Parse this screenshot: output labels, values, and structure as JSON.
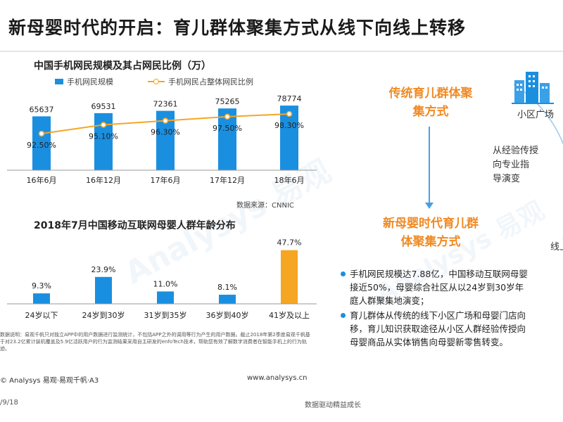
{
  "header": {
    "title": "新母婴时代的开启：育儿群体聚集方式从线下向线上转移"
  },
  "chart_data": [
    {
      "type": "bar",
      "title": "中国手机网民规模及其占网民比例（万）",
      "categories": [
        "16年6月",
        "16年12月",
        "17年6月",
        "17年12月",
        "18年6月"
      ],
      "series": [
        {
          "name": "手机网民规模",
          "values": [
            65637,
            69531,
            72361,
            75265,
            78774
          ],
          "value_labels": [
            "65637",
            "69531",
            "72361",
            "75265",
            "78774"
          ],
          "color": "#1a8fe0",
          "kind": "bar"
        },
        {
          "name": "手机网民占整体网民比例",
          "values": [
            92.5,
            95.1,
            96.3,
            97.5,
            98.3
          ],
          "value_labels": [
            "92.50%",
            "95.10%",
            "96.30%",
            "97.50%",
            "98.30%"
          ],
          "color": "#f5a623",
          "kind": "line"
        }
      ],
      "ylim": [
        0,
        90000
      ],
      "source": "数据来源：CNNIC"
    },
    {
      "type": "bar",
      "title": "2018年7月中国移动互联网母婴人群年龄分布",
      "categories": [
        "24岁以下",
        "24岁到30岁",
        "31岁到35岁",
        "36岁到40岁",
        "41岁及以上"
      ],
      "values": [
        9.3,
        23.9,
        11.0,
        8.1,
        47.7
      ],
      "value_labels": [
        "9.3%",
        "23.9%",
        "11.0%",
        "8.1%",
        "47.7%"
      ],
      "colors": [
        "#1a8fe0",
        "#1a8fe0",
        "#1a8fe0",
        "#1a8fe0",
        "#f5a623"
      ],
      "ylim": [
        0,
        50
      ]
    }
  ],
  "note": "数据说明：易观千帆只对独立APP中的用户数据进行监测统计，不包括APP之外的调用等行为产生的用户数据。截止2018年第2季度易观千帆基于对23.2亿累计装机覆盖及5.9亿活跃用户的行为监测结果采用自主研发的enfoTech技术，帮助您有效了解数字消费者在智能手机上的行为轨迹。",
  "footer": {
    "brand": "© Analysys 易观·易观千帆·A3",
    "url": "www.analysys.cn",
    "date": "/9/18",
    "slogan": "数据驱动精益成长"
  },
  "diagram": {
    "traditional": "传统育儿群体聚集方式",
    "new_era": "新母婴时代育儿群体聚集方式",
    "plaza_label": "小区广场",
    "transfer_text": "从经验传授向专业指导演变",
    "online_partial": "线上"
  },
  "bullets": [
    {
      "lines": [
        "手机网民规模达7.88亿，中国移动互联网母婴",
        "接近50%，母婴综合社区从以24岁到30岁年",
        "庭人群聚集地演变；"
      ]
    },
    {
      "lines": [
        "育儿群体从传统的线下小区广场和母婴门店向",
        "移，育儿知识获取途径从小区人群经验传授向",
        "母婴商品从实体销售向母婴新零售转变。"
      ]
    }
  ],
  "watermark": "Analysys 易观"
}
